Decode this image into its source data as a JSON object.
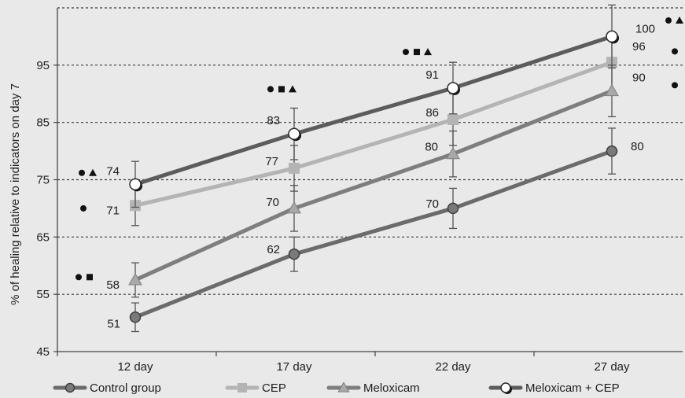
{
  "chart_data": {
    "type": "line",
    "ylabel": "% of healing relative to indicators on day 7",
    "ylim": [
      45,
      105
    ],
    "yticks": [
      45,
      55,
      65,
      75,
      85,
      95
    ],
    "grid": "horizontal-dashed",
    "legend": "bottom",
    "categories": [
      "12 day",
      "17 day",
      "22 day",
      "27 day"
    ],
    "series": [
      {
        "name": "Control group",
        "marker": "circle",
        "color": "#6b6b6b",
        "marker_fill": "#7a7a7a",
        "values": [
          51,
          62,
          70,
          80
        ],
        "labels": [
          "51",
          "62",
          "70",
          "80"
        ],
        "error": [
          2.5,
          3,
          3.5,
          4
        ]
      },
      {
        "name": "CEP",
        "marker": "square",
        "color": "#b4b4b4",
        "marker_fill": "#b4b4b4",
        "values": [
          70.5,
          77,
          85.5,
          95.5
        ],
        "labels": [
          "71",
          "77",
          "86",
          "96"
        ],
        "error": [
          3.5,
          4,
          4.5,
          5
        ]
      },
      {
        "name": "Meloxicam",
        "marker": "triangle",
        "color": "#7e7e7e",
        "marker_fill": "#a9a9a9",
        "values": [
          57.5,
          70,
          79.5,
          90.5
        ],
        "labels": [
          "58",
          "70",
          "80",
          "90"
        ],
        "error": [
          3,
          4,
          4,
          4.5
        ]
      },
      {
        "name": "Meloxicam + CEP",
        "marker": "open-circle",
        "color": "#5c5c5c",
        "marker_fill": "#ffffff",
        "values": [
          74.2,
          83,
          91,
          100
        ],
        "labels": [
          "74",
          "83",
          "91",
          "100"
        ],
        "error": [
          4,
          4.5,
          4.5,
          5.5
        ]
      }
    ],
    "significance_markers": [
      {
        "category": "12 day",
        "y": 76.2,
        "symbols": [
          "circle",
          "triangle"
        ]
      },
      {
        "category": "12 day",
        "y": 70,
        "symbols": [
          "circle"
        ]
      },
      {
        "category": "12 day",
        "y": 58,
        "symbols": [
          "circle",
          "square"
        ]
      },
      {
        "category": "17 day",
        "y": 90.8,
        "symbols": [
          "circle",
          "square",
          "triangle"
        ]
      },
      {
        "category": "22 day",
        "y": 97.3,
        "symbols": [
          "circle",
          "square",
          "triangle"
        ]
      },
      {
        "category": "27 day",
        "y": 102.8,
        "symbols": [
          "circle",
          "triangle"
        ]
      },
      {
        "category": "27 day",
        "y": 97.4,
        "symbols": [
          "circle"
        ]
      },
      {
        "category": "27 day",
        "y": 91.5,
        "symbols": [
          "circle"
        ]
      }
    ]
  }
}
